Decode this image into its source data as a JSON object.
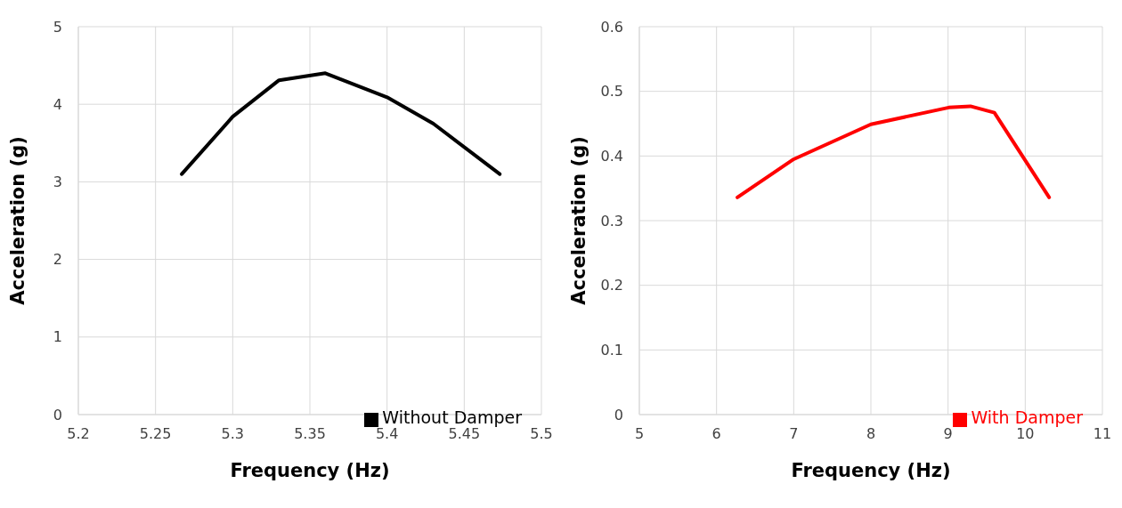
{
  "chart_data": [
    {
      "type": "line",
      "xlabel": "Frequency (Hz)",
      "ylabel": "Acceleration (g)",
      "x": [
        5.267,
        5.3,
        5.33,
        5.36,
        5.4,
        5.43,
        5.473
      ],
      "series": [
        {
          "name": "Without Damper",
          "color": "#000000",
          "values": [
            3.1,
            3.84,
            4.31,
            4.4,
            4.09,
            3.75,
            3.1
          ]
        }
      ],
      "xlim": [
        5.2,
        5.5
      ],
      "xticks": [
        5.2,
        5.25,
        5.3,
        5.35,
        5.4,
        5.45,
        5.5
      ],
      "ylim": [
        0,
        5
      ],
      "yticks": [
        0,
        1,
        2,
        3,
        4,
        5
      ],
      "grid": true,
      "legend": "bottom right",
      "marker": "none",
      "line_style": "solid"
    },
    {
      "type": "line",
      "xlabel": "Frequency (Hz)",
      "ylabel": "Acceleration (g)",
      "x": [
        6.27,
        7.0,
        8.0,
        9.01,
        9.29,
        9.6,
        10.31
      ],
      "series": [
        {
          "name": "With Damper",
          "color": "#ff0000",
          "values": [
            0.336,
            0.395,
            0.449,
            0.475,
            0.477,
            0.467,
            0.336
          ]
        }
      ],
      "xlim": [
        5,
        11
      ],
      "xticks": [
        5,
        6,
        7,
        8,
        9,
        10,
        11
      ],
      "ylim": [
        0,
        0.6
      ],
      "yticks": [
        0,
        0.1,
        0.2,
        0.3,
        0.4,
        0.5,
        0.6
      ],
      "grid": true,
      "legend": "bottom right",
      "marker": "none",
      "line_style": "solid"
    }
  ]
}
